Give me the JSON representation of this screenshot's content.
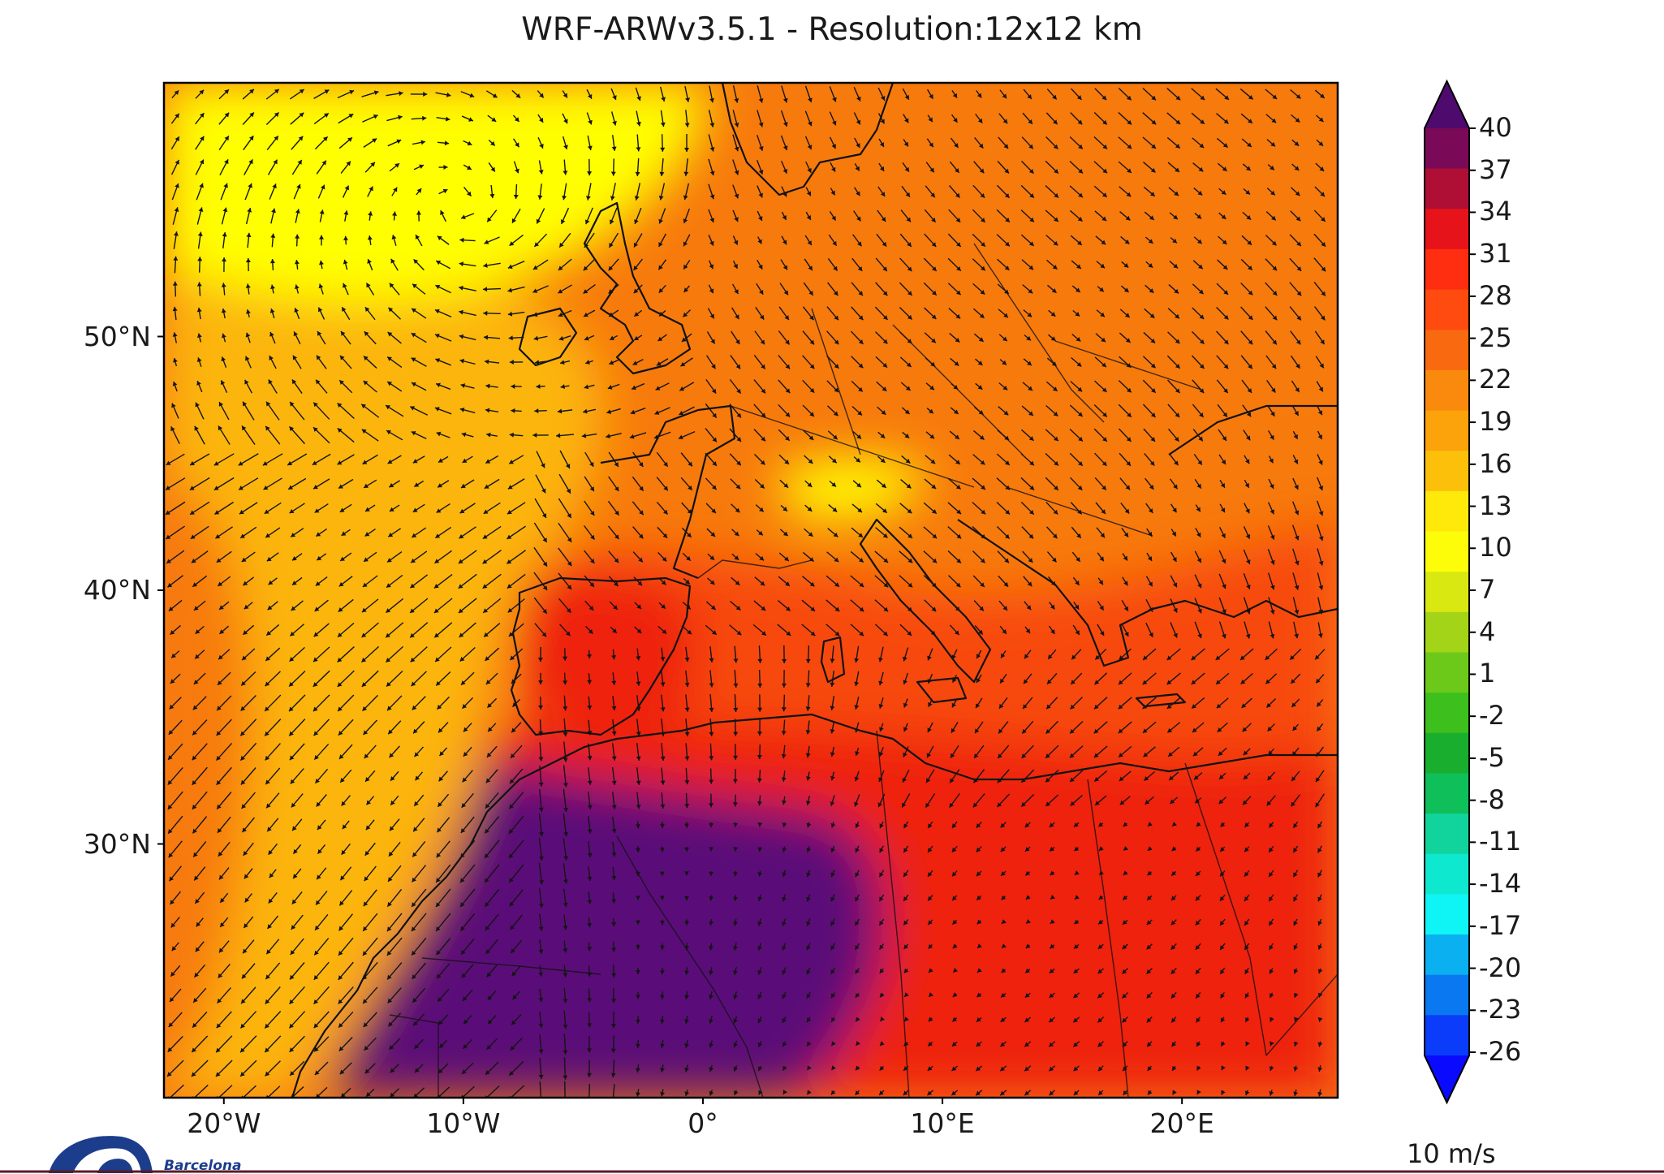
{
  "title": "WRF-ARWv3.5.1 - Resolution:12x12 km",
  "map": {
    "lon_range": [
      -22.5,
      26.5
    ],
    "lat_range": [
      20,
      60
    ],
    "lat_ticks": [
      {
        "lat": 50,
        "label": "50°N"
      },
      {
        "lat": 40,
        "label": "40°N"
      },
      {
        "lat": 30,
        "label": "30°N"
      }
    ],
    "lon_ticks": [
      {
        "lon": -20,
        "label": "20°W"
      },
      {
        "lon": -10,
        "label": "10°W"
      },
      {
        "lon": 0,
        "label": "0°"
      },
      {
        "lon": 10,
        "label": "10°E"
      },
      {
        "lon": 20,
        "label": "20°E"
      }
    ],
    "field_colors": {
      "background": "#f77a0c",
      "north_atlantic_cool": "#ffff00",
      "atlantic_mild": "#fcb50a",
      "mediterranean": "#f74a0a",
      "north_africa": "#ee2410",
      "sahara_hot": "#5a0a78"
    },
    "vector_color": "#141414"
  },
  "colorbar": {
    "ticks": [
      "40",
      "37",
      "34",
      "31",
      "28",
      "25",
      "22",
      "19",
      "16",
      "13",
      "10",
      "7",
      "4",
      "1",
      "-2",
      "-5",
      "-8",
      "-11",
      "-14",
      "-17",
      "-20",
      "-23",
      "-26"
    ],
    "colors": [
      "#4f0a6e",
      "#7a0a58",
      "#b00f35",
      "#e6141a",
      "#ff2e10",
      "#ff4a10",
      "#f9690f",
      "#f98a0d",
      "#fca20a",
      "#fcc00a",
      "#ffe90a",
      "#fdfd0a",
      "#d9e810",
      "#a3d417",
      "#6cc91a",
      "#3dbf1e",
      "#1aae2e",
      "#0fbf5a",
      "#10d49c",
      "#0ee8cf",
      "#0ff5f5",
      "#0ab0ef",
      "#0a78f0",
      "#0a3cfa",
      "#0a0aff"
    ],
    "reference_vector_label": "10 m/s"
  },
  "logo": {
    "text": "Barcelona"
  }
}
